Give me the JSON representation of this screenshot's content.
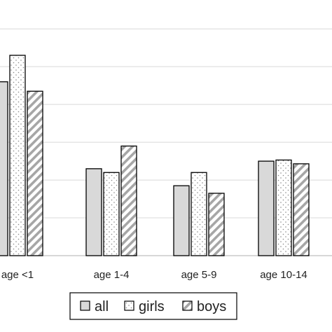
{
  "chart_data": {
    "type": "bar",
    "title": "",
    "xlabel": "",
    "ylabel": "",
    "categories": [
      "age <1",
      "age 1-4",
      "age 5-9",
      "age 10-14"
    ],
    "ylim": [
      0,
      6.3
    ],
    "grid": true,
    "legend_position": "bottom",
    "series": [
      {
        "name": "all",
        "values": [
          4.6,
          2.3,
          1.85,
          2.5
        ],
        "fill": "#d9d9d9",
        "pattern": "solid"
      },
      {
        "name": "girls",
        "values": [
          5.3,
          2.2,
          2.2,
          2.53
        ],
        "fill": "#ffffff",
        "pattern": "dots"
      },
      {
        "name": "boys",
        "values": [
          4.35,
          2.9,
          1.65,
          2.43
        ],
        "fill": "#ffffff",
        "pattern": "diagonal"
      }
    ]
  }
}
